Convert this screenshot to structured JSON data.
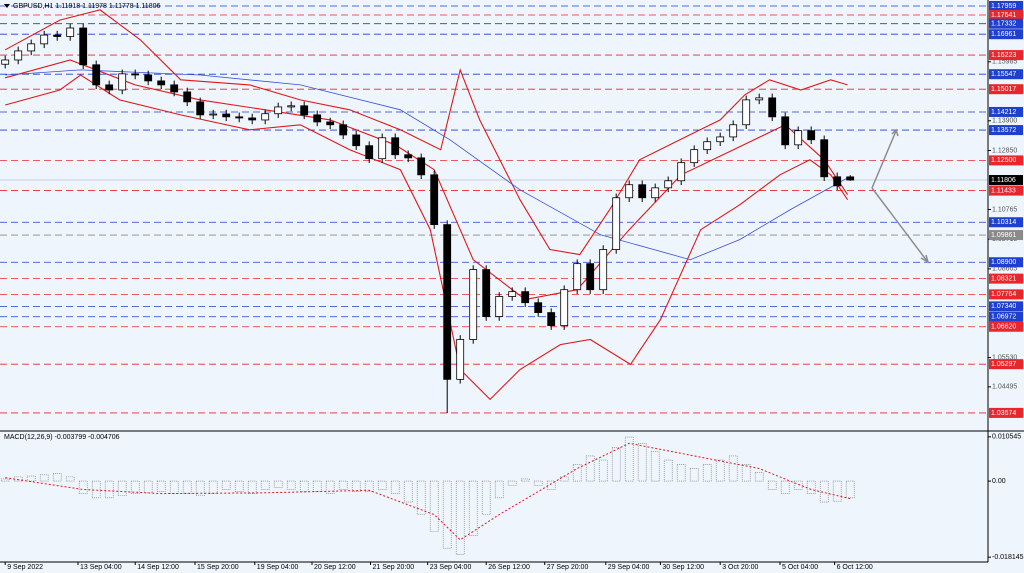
{
  "chart_data": [
    {
      "type": "candlestick",
      "title": "GBPUSD,H1  1.11918 1.11978 1.11778 1.11806",
      "x": [
        0,
        1,
        2,
        3,
        4,
        5,
        6,
        7,
        8,
        9,
        10,
        11,
        12,
        13,
        14,
        15,
        16,
        17,
        18,
        19,
        20,
        21,
        22,
        23,
        24,
        25,
        26,
        27,
        28,
        29,
        30,
        31,
        32,
        33,
        34,
        35,
        36,
        37,
        38,
        39,
        40,
        41,
        42,
        43,
        44,
        45,
        46,
        47,
        48,
        49,
        50,
        51,
        52,
        53,
        54,
        55,
        56,
        57,
        58,
        59,
        60,
        61,
        62,
        63,
        64,
        65
      ],
      "open": [
        1.159,
        1.1605,
        1.1637,
        1.1662,
        1.1693,
        1.1688,
        1.1718,
        1.1588,
        1.1517,
        1.1499,
        1.1556,
        1.1552,
        1.1531,
        1.1517,
        1.1492,
        1.1457,
        1.1411,
        1.1414,
        1.1404,
        1.14,
        1.1393,
        1.1415,
        1.1439,
        1.1443,
        1.1411,
        1.1386,
        1.1376,
        1.134,
        1.1302,
        1.1256,
        1.133,
        1.127,
        1.1259,
        1.1199,
        1.1023,
        1.0476,
        1.0617,
        1.0864,
        1.0698,
        1.0769,
        1.0786,
        1.0747,
        1.0712,
        1.0666,
        1.0793,
        1.0885,
        1.0793,
        1.0935,
        1.1118,
        1.1164,
        1.1118,
        1.1153,
        1.1178,
        1.1242,
        1.1288,
        1.1316,
        1.1333,
        1.1376,
        1.1464,
        1.1471,
        1.1404,
        1.1305,
        1.1355,
        1.1323,
        1.1192,
        1.11918
      ],
      "high": [
        1.162,
        1.1652,
        1.1677,
        1.1708,
        1.1708,
        1.1733,
        1.1733,
        1.1603,
        1.1532,
        1.1571,
        1.1571,
        1.1567,
        1.1546,
        1.1532,
        1.1507,
        1.1472,
        1.1429,
        1.1429,
        1.1419,
        1.1415,
        1.143,
        1.1454,
        1.1458,
        1.1458,
        1.1426,
        1.1401,
        1.1391,
        1.1355,
        1.1317,
        1.1345,
        1.1345,
        1.1285,
        1.1274,
        1.1214,
        1.1038,
        1.0632,
        1.0879,
        1.0879,
        1.0784,
        1.0801,
        1.0801,
        1.0762,
        1.0727,
        1.0808,
        1.09,
        1.09,
        1.095,
        1.1133,
        1.1179,
        1.1179,
        1.1168,
        1.1193,
        1.1257,
        1.1303,
        1.1331,
        1.1348,
        1.1391,
        1.1479,
        1.1486,
        1.1486,
        1.1419,
        1.137,
        1.137,
        1.1338,
        1.1207,
        1.11978
      ],
      "low": [
        1.1575,
        1.159,
        1.1622,
        1.1647,
        1.1673,
        1.1673,
        1.1573,
        1.1502,
        1.1484,
        1.1484,
        1.1537,
        1.1516,
        1.1502,
        1.1477,
        1.1442,
        1.1396,
        1.1396,
        1.1389,
        1.1385,
        1.1378,
        1.1378,
        1.14,
        1.1424,
        1.1396,
        1.1371,
        1.1361,
        1.1325,
        1.1287,
        1.1241,
        1.1241,
        1.1255,
        1.1244,
        1.1184,
        1.1008,
        1.0357,
        1.0461,
        1.0602,
        1.0683,
        1.0683,
        1.0754,
        1.0732,
        1.0697,
        1.0651,
        1.0651,
        1.0778,
        1.0778,
        1.0778,
        1.092,
        1.1103,
        1.1103,
        1.1103,
        1.1138,
        1.1163,
        1.1227,
        1.1273,
        1.1301,
        1.1318,
        1.1361,
        1.1449,
        1.1389,
        1.129,
        1.129,
        1.1308,
        1.1177,
        1.1145,
        1.11778
      ],
      "close": [
        1.1605,
        1.1637,
        1.1662,
        1.1693,
        1.1688,
        1.1718,
        1.1588,
        1.1517,
        1.1499,
        1.1556,
        1.1552,
        1.1531,
        1.1517,
        1.1492,
        1.1457,
        1.1411,
        1.1414,
        1.1404,
        1.14,
        1.1393,
        1.1415,
        1.1439,
        1.1443,
        1.1411,
        1.1386,
        1.1376,
        1.134,
        1.1302,
        1.1256,
        1.133,
        1.127,
        1.1259,
        1.1199,
        1.1023,
        1.0476,
        1.0617,
        1.0864,
        1.0698,
        1.0769,
        1.0786,
        1.0747,
        1.0712,
        1.0666,
        1.0793,
        1.0885,
        1.0793,
        1.0935,
        1.1118,
        1.1164,
        1.1118,
        1.1153,
        1.1178,
        1.1242,
        1.1288,
        1.1316,
        1.1333,
        1.1376,
        1.1464,
        1.1471,
        1.1404,
        1.1305,
        1.1355,
        1.1323,
        1.1192,
        1.116,
        1.11806
      ],
      "color": "#000000",
      "xlim": [
        -0.4,
        75.6
      ],
      "ylim": [
        1.0297,
        1.1817
      ],
      "xticks": [
        {
          "value": 0,
          "label": "9 Sep 2022"
        },
        {
          "value": 5.6,
          "label": "13 Sep 04:00"
        },
        {
          "value": 10,
          "label": "14 Sep 12:00"
        },
        {
          "value": 14.6,
          "label": "15 Sep 20:00"
        },
        {
          "value": 19.2,
          "label": "19 Sep 04:00"
        },
        {
          "value": 23.6,
          "label": "20 Sep 12:00"
        },
        {
          "value": 28.1,
          "label": "21 Sep 20:00"
        },
        {
          "value": 32.5,
          "label": "23 Sep 04:00"
        },
        {
          "value": 37,
          "label": "26 Sep 12:00"
        },
        {
          "value": 41.5,
          "label": "27 Sep 20:00"
        },
        {
          "value": 46.2,
          "label": "29 Sep 04:00"
        },
        {
          "value": 50.4,
          "label": "30 Sep 12:00"
        },
        {
          "value": 55,
          "label": "3 Oct 20:00"
        },
        {
          "value": 59.6,
          "label": "5 Oct 04:00"
        },
        {
          "value": 63.8,
          "label": "6 Oct 12:00"
        }
      ],
      "yticks": [
        1.15985,
        {
          "value": 1.139,
          "label": "1.13900"
        },
        {
          "value": 1.1285,
          "label": "1.12850"
        },
        1.10765,
        1.09715,
        1.08665,
        {
          "value": 1.0553,
          "label": "1.05530"
        },
        1.04495
      ],
      "levels": [
        {
          "value": 1.17959,
          "color": "#1f3fd0"
        },
        {
          "value": 1.17641,
          "color": "#e8262b"
        },
        {
          "value": 1.17332,
          "color": "#1f3fd0"
        },
        {
          "value": 1.16961,
          "color": "#1f3fd0"
        },
        {
          "value": 1.16223,
          "color": "#e8262b"
        },
        {
          "value": 1.15547,
          "color": "#1f3fd0"
        },
        {
          "value": 1.15017,
          "color": "#e8262b"
        },
        {
          "value": 1.14212,
          "color": "#1f3fd0"
        },
        {
          "value": 1.13572,
          "color": "#1f3fd0"
        },
        {
          "value": 1.125,
          "label": "1.12500",
          "color": "#e8262b"
        },
        {
          "value": 1.11433,
          "color": "#e8262b"
        },
        {
          "value": 1.10314,
          "color": "#1f3fd0"
        },
        {
          "value": 1.09861,
          "color": "#8a8a8a"
        },
        {
          "value": 1.089,
          "label": "1.08900",
          "color": "#1f3fd0"
        },
        {
          "value": 1.08321,
          "color": "#e8262b"
        },
        {
          "value": 1.07764,
          "color": "#e8262b"
        },
        {
          "value": 1.0734,
          "label": "1.07340",
          "color": "#1f3fd0"
        },
        {
          "value": 1.06972,
          "color": "#1f3fd0"
        },
        {
          "value": 1.0662,
          "label": "1.06620",
          "color": "#e8262b"
        },
        {
          "value": 1.05297,
          "color": "#e8262b"
        },
        {
          "value": 1.03574,
          "color": "#e8262b"
        }
      ],
      "current": {
        "value": 1.11806,
        "color": "#000000"
      },
      "overlays": [
        {
          "color": "#e01818",
          "x": [
            0,
            4.2,
            7.3,
            10.4,
            13.5,
            18.8,
            22.7,
            26.5,
            30.4,
            33.5,
            35,
            36.5,
            39.6,
            41.9,
            44.2,
            46.5,
            48.8,
            51.9,
            55,
            56.9,
            58.8,
            61.2,
            63.5,
            64.8
          ],
          "values": [
            1.1641,
            1.1746,
            1.1782,
            1.1676,
            1.1535,
            1.1517,
            1.1464,
            1.1429,
            1.1358,
            1.1288,
            1.157,
            1.1393,
            1.1111,
            1.0935,
            1.0917,
            1.1076,
            1.1252,
            1.1323,
            1.1393,
            1.1482,
            1.1535,
            1.1499,
            1.1535,
            1.1517
          ]
        },
        {
          "color": "#e01818",
          "x": [
            0,
            4.2,
            5.8,
            8.8,
            13.5,
            18.8,
            22.7,
            26.5,
            30.4,
            32.7,
            35,
            37.3,
            39.6,
            42.7,
            45,
            48.1,
            50.4,
            53.5,
            56.5,
            59.6,
            61.9,
            63.5,
            64.8
          ],
          "values": [
            1.1446,
            1.1499,
            1.1552,
            1.1464,
            1.1411,
            1.1358,
            1.1376,
            1.1288,
            1.1217,
            1.1005,
            1.0511,
            1.0405,
            1.0511,
            1.0599,
            1.0617,
            1.0529,
            1.0687,
            1.1005,
            1.1093,
            1.1199,
            1.1252,
            1.1199,
            1.1111
          ]
        },
        {
          "color": "#e01818",
          "x": [
            0,
            5,
            10,
            15,
            20,
            25,
            30,
            33,
            36,
            40,
            44,
            48,
            52,
            56,
            60,
            63,
            64.8
          ],
          "values": [
            1.1542,
            1.1605,
            1.1517,
            1.1464,
            1.1429,
            1.1393,
            1.1305,
            1.1217,
            1.0899,
            1.0758,
            1.0793,
            1.1005,
            1.1199,
            1.1287,
            1.1376,
            1.1252,
            1.1129
          ]
        },
        {
          "color": "#3a4fd8",
          "x": [
            0,
            5.8,
            15,
            22.7,
            30.4,
            34.2,
            39.6,
            45.8,
            52.7,
            56.5,
            60.4,
            64.8
          ],
          "values": [
            1.1552,
            1.157,
            1.1552,
            1.1517,
            1.1429,
            1.1323,
            1.1146,
            1.0987,
            1.0899,
            1.097,
            1.1076,
            1.1188
          ]
        }
      ]
    },
    {
      "type": "bar",
      "title": "MACD(12,26,9) -0.003799 -0.004706",
      "values": [
        0.0005,
        0.001,
        0.0012,
        0.0015,
        0.0018,
        0.001,
        -0.003,
        -0.004,
        -0.004,
        -0.0035,
        -0.003,
        -0.0028,
        -0.0025,
        -0.003,
        -0.003,
        -0.0035,
        -0.003,
        -0.002,
        -0.0025,
        -0.003,
        -0.002,
        -0.0015,
        -0.002,
        -0.0025,
        -0.0025,
        -0.003,
        -0.002,
        -0.0025,
        -0.0025,
        -0.002,
        -0.003,
        -0.005,
        -0.008,
        -0.012,
        -0.016,
        -0.0175,
        -0.013,
        -0.008,
        -0.004,
        -0.001,
        0.0005,
        -0.001,
        -0.002,
        0.001,
        0.004,
        0.006,
        0.005,
        0.008,
        0.0105,
        0.009,
        0.007,
        0.005,
        0.004,
        0.003,
        0.004,
        0.005,
        0.006,
        0.004,
        0.002,
        -0.002,
        -0.003,
        -0.002,
        -0.003,
        -0.005,
        -0.0048,
        -0.004
      ],
      "color": "#6e6e6e",
      "ylim": [
        -0.0193,
        0.0117
      ],
      "yticks": [
        0.010545,
        {
          "value": 0,
          "label": "0.00"
        },
        -0.018145
      ],
      "signal": {
        "color": "#e01818",
        "x": [
          0,
          6,
          12,
          20,
          28,
          33,
          35,
          38,
          44,
          48,
          53,
          58,
          62,
          65
        ],
        "values": [
          0.0008,
          -0.002,
          -0.003,
          -0.0028,
          -0.0022,
          -0.008,
          -0.014,
          -0.008,
          0.003,
          0.009,
          0.006,
          0.003,
          -0.002,
          -0.0042
        ]
      }
    }
  ]
}
